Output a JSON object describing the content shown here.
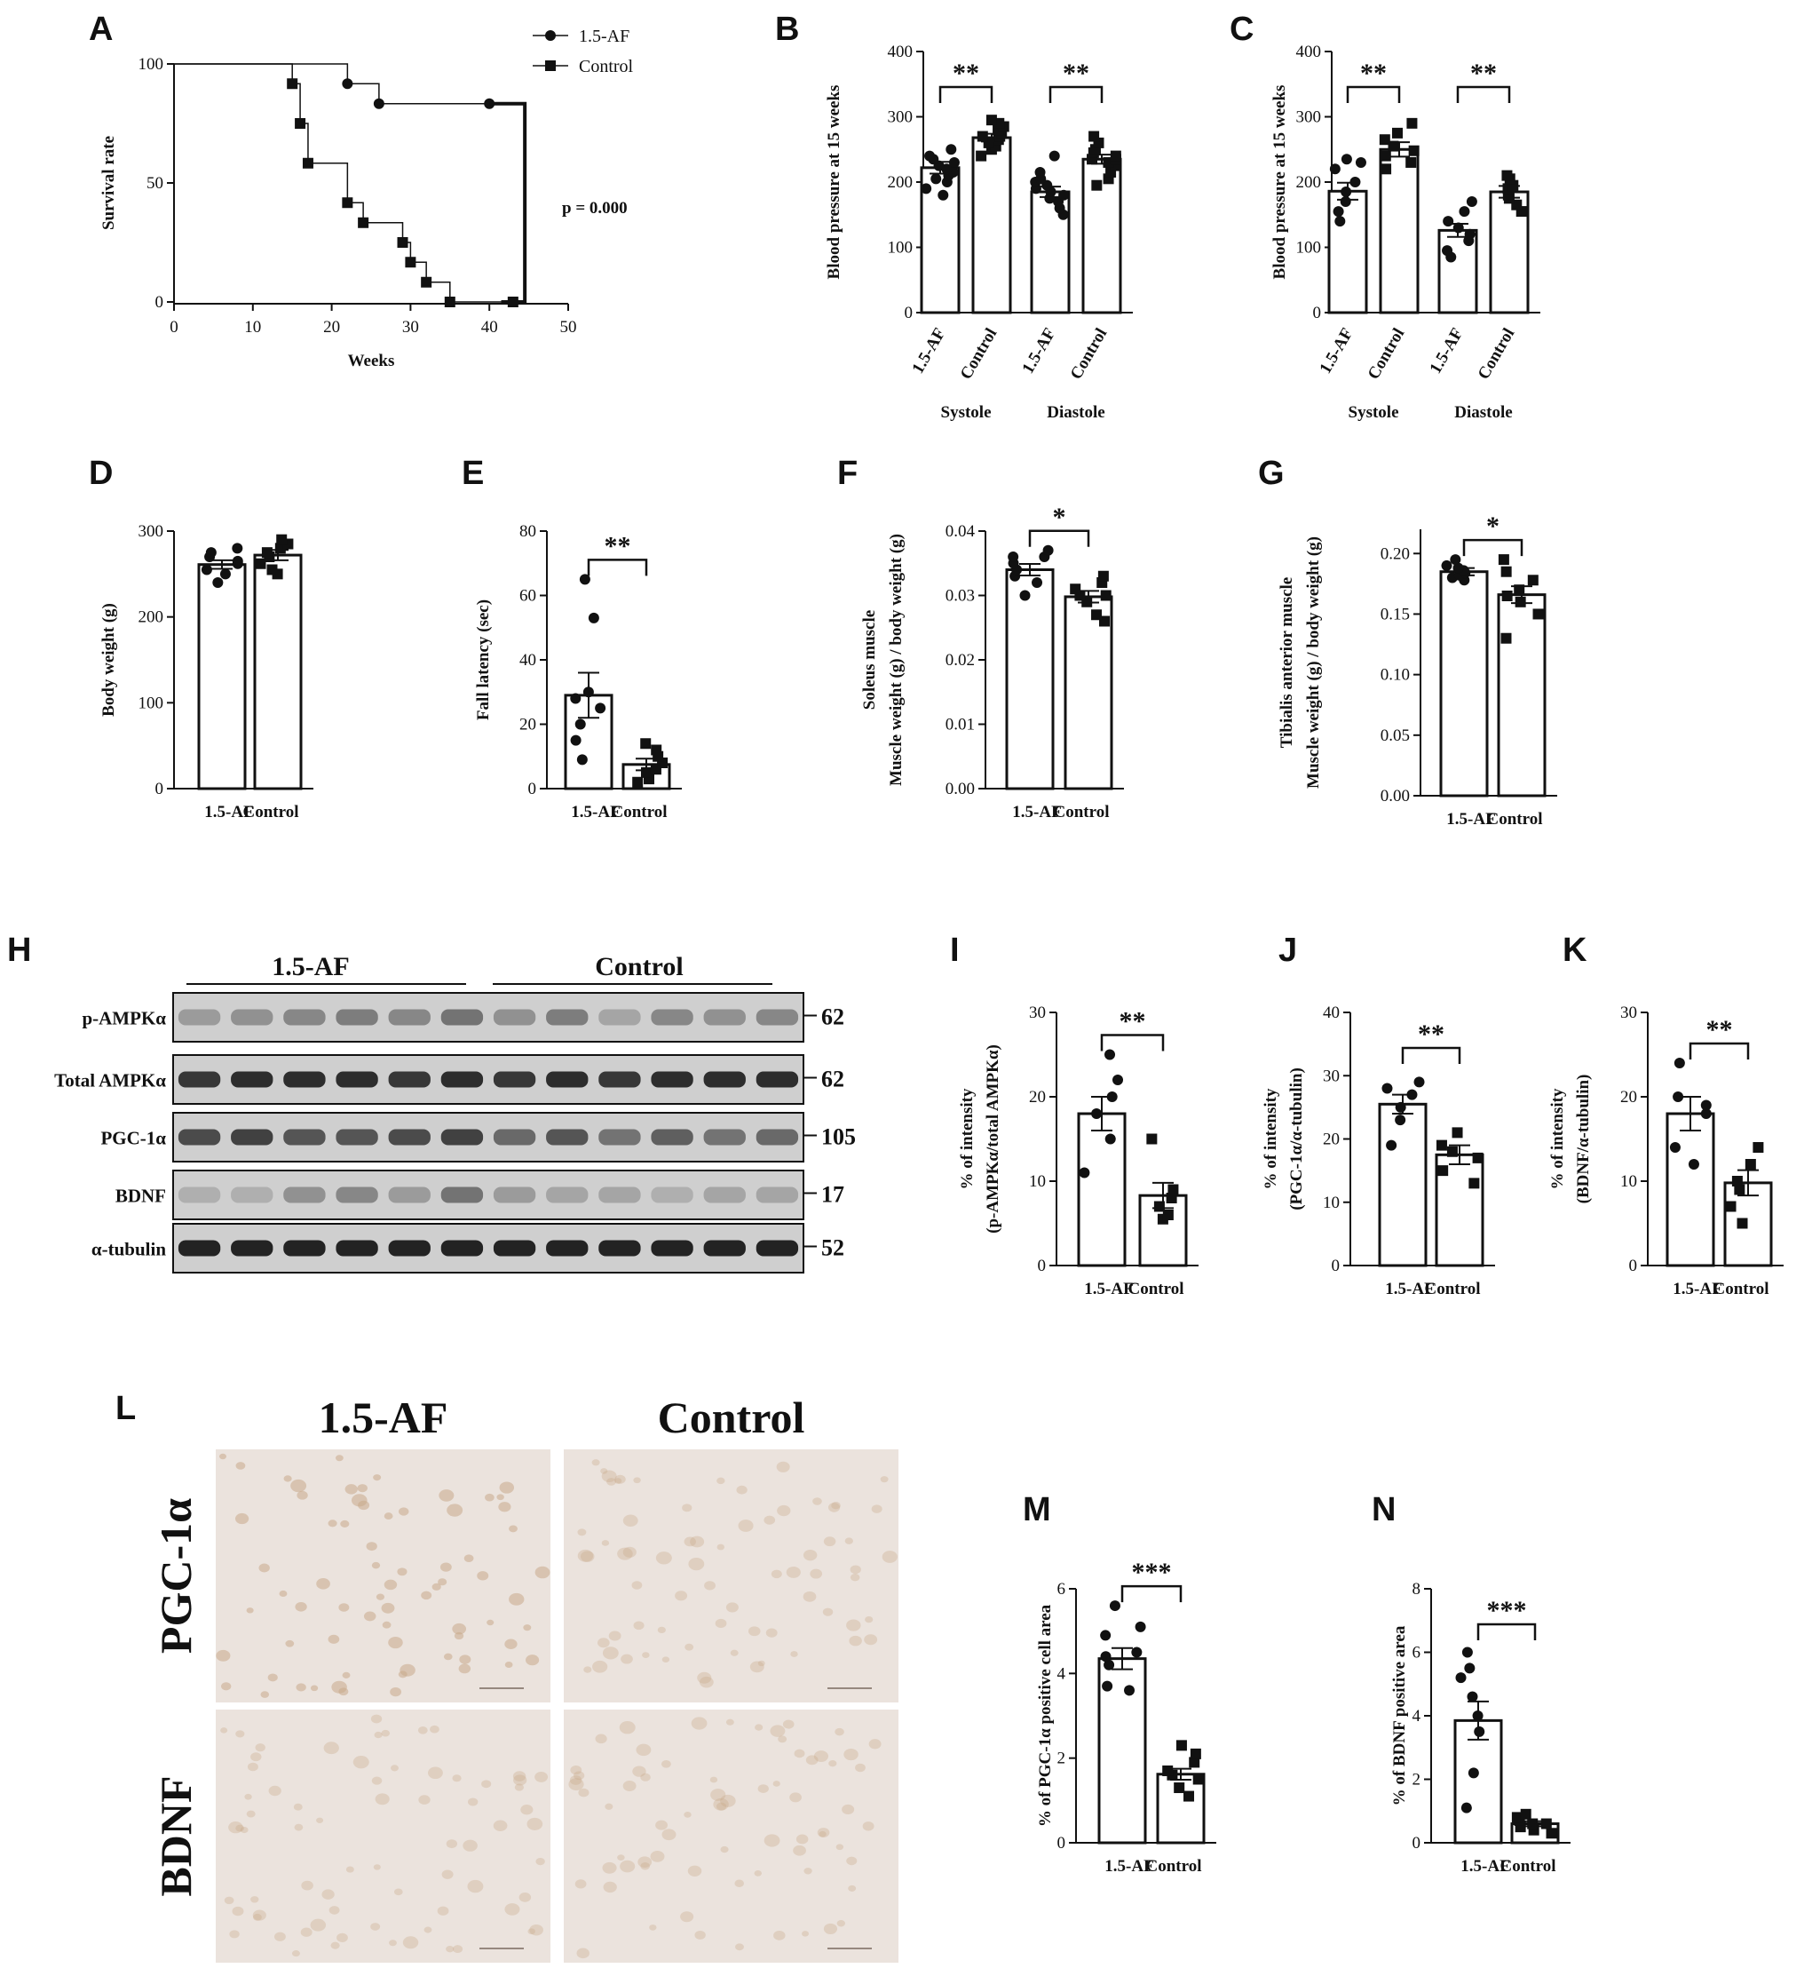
{
  "chart_data": [
    {
      "panel": "A",
      "type": "line",
      "kind": "survival",
      "xlabel": "Weeks",
      "ylabel": "Survival rate",
      "xlim": [
        0,
        50
      ],
      "ylim": [
        0,
        100
      ],
      "xticks": [
        0,
        10,
        20,
        30,
        40,
        50
      ],
      "yticks": [
        0,
        50,
        100
      ],
      "legend_position": "top-right",
      "series": [
        {
          "name": "1.5-AF",
          "marker": "circle",
          "steps": [
            [
              0,
              100
            ],
            [
              22,
              100
            ],
            [
              22,
              91.7
            ],
            [
              26,
              91.7
            ],
            [
              26,
              83.3
            ],
            [
              40,
              83.3
            ]
          ],
          "markers": [
            [
              22,
              91.7
            ],
            [
              26,
              83.3
            ],
            [
              40,
              83.3
            ]
          ]
        },
        {
          "name": "Control",
          "marker": "square",
          "steps": [
            [
              0,
              100
            ],
            [
              15,
              100
            ],
            [
              15,
              91.7
            ],
            [
              16,
              91.7
            ],
            [
              16,
              75
            ],
            [
              17,
              75
            ],
            [
              17,
              58.3
            ],
            [
              22,
              58.3
            ],
            [
              22,
              41.7
            ],
            [
              24,
              41.7
            ],
            [
              24,
              33.3
            ],
            [
              29,
              33.3
            ],
            [
              29,
              25
            ],
            [
              30,
              25
            ],
            [
              30,
              16.7
            ],
            [
              32,
              16.7
            ],
            [
              32,
              8.3
            ],
            [
              35,
              8.3
            ],
            [
              35,
              0
            ],
            [
              43,
              0
            ]
          ],
          "markers": [
            [
              15,
              91.7
            ],
            [
              16,
              75
            ],
            [
              17,
              58.3
            ],
            [
              22,
              41.7
            ],
            [
              24,
              33.3
            ],
            [
              29,
              25
            ],
            [
              30,
              16.7
            ],
            [
              32,
              8.3
            ],
            [
              35,
              0
            ],
            [
              43,
              0
            ]
          ]
        }
      ],
      "annotation": "p = 0.000"
    },
    {
      "panel": "B",
      "type": "bar",
      "ylabel": "Blood pressure at 15 weeks",
      "ylim": [
        0,
        400
      ],
      "yticks": [
        0,
        100,
        200,
        300,
        400
      ],
      "categories": [
        "1.5-AF",
        "Control",
        "1.5-AF",
        "Control"
      ],
      "groups": [
        "Systole",
        "Diastole"
      ],
      "values": [
        222,
        268,
        185,
        235
      ],
      "sem": [
        9,
        6,
        8,
        7
      ],
      "points": [
        [
          180,
          190,
          200,
          205,
          210,
          215,
          220,
          225,
          230,
          235,
          240,
          250
        ],
        [
          240,
          250,
          255,
          260,
          265,
          270,
          270,
          275,
          280,
          285,
          290,
          295
        ],
        [
          150,
          160,
          170,
          175,
          180,
          185,
          190,
          195,
          200,
          205,
          215,
          240
        ],
        [
          195,
          205,
          215,
          225,
          230,
          235,
          235,
          240,
          245,
          250,
          260,
          270
        ]
      ],
      "markers": [
        "circle",
        "square",
        "circle",
        "square"
      ],
      "significance": [
        {
          "pair": [
            0,
            1
          ],
          "label": "**"
        },
        {
          "pair": [
            2,
            3
          ],
          "label": "**"
        }
      ]
    },
    {
      "panel": "C",
      "type": "bar",
      "ylabel": "Blood pressure at 15 weeks",
      "ylim": [
        0,
        400
      ],
      "yticks": [
        0,
        100,
        200,
        300,
        400
      ],
      "categories": [
        "1.5-AF",
        "Control",
        "1.5-AF",
        "Control"
      ],
      "groups": [
        "Systole",
        "Diastole"
      ],
      "values": [
        186,
        250,
        126,
        185
      ],
      "sem": [
        13,
        11,
        10,
        9
      ],
      "points": [
        [
          140,
          155,
          170,
          185,
          200,
          220,
          230,
          235
        ],
        [
          220,
          230,
          240,
          248,
          255,
          265,
          275,
          290
        ],
        [
          85,
          95,
          110,
          120,
          130,
          140,
          155,
          170
        ],
        [
          155,
          165,
          175,
          180,
          190,
          195,
          205,
          210
        ]
      ],
      "markers": [
        "circle",
        "square",
        "circle",
        "square"
      ],
      "significance": [
        {
          "pair": [
            0,
            1
          ],
          "label": "**"
        },
        {
          "pair": [
            2,
            3
          ],
          "label": "**"
        }
      ]
    },
    {
      "panel": "D",
      "type": "bar",
      "ylabel": "Body weight (g)",
      "ylim": [
        0,
        300
      ],
      "yticks": [
        0,
        100,
        200,
        300
      ],
      "categories": [
        "1.5-AF",
        "Control"
      ],
      "values": [
        261,
        272
      ],
      "sem": [
        5,
        6
      ],
      "points": [
        [
          240,
          250,
          255,
          262,
          265,
          270,
          275,
          280
        ],
        [
          250,
          255,
          262,
          270,
          275,
          280,
          285,
          290
        ]
      ],
      "markers": [
        "circle",
        "square"
      ],
      "significance": []
    },
    {
      "panel": "E",
      "type": "bar",
      "ylabel": "Fall latency (sec)",
      "ylim": [
        0,
        80
      ],
      "yticks": [
        0,
        20,
        40,
        60,
        80
      ],
      "categories": [
        "1.5-AF",
        "Control"
      ],
      "values": [
        29,
        7.5
      ],
      "sem": [
        7,
        1.8
      ],
      "points": [
        [
          9,
          15,
          20,
          25,
          28,
          30,
          53,
          65
        ],
        [
          2,
          3,
          5,
          6,
          8,
          10,
          12,
          14
        ]
      ],
      "markers": [
        "circle",
        "square"
      ],
      "significance": [
        {
          "pair": [
            0,
            1
          ],
          "label": "**"
        }
      ]
    },
    {
      "panel": "F",
      "type": "bar",
      "ylabel": [
        "Soleus muscle",
        "Muscle weight (g) / body weight (g)"
      ],
      "ylim": [
        0,
        0.04
      ],
      "yticks": [
        0.0,
        0.01,
        0.02,
        0.03,
        0.04
      ],
      "tick_decimals": 2,
      "categories": [
        "1.5-AF",
        "Control"
      ],
      "values": [
        0.034,
        0.0298
      ],
      "sem": [
        0.0009,
        0.0009
      ],
      "points": [
        [
          0.03,
          0.032,
          0.033,
          0.034,
          0.035,
          0.036,
          0.036,
          0.037
        ],
        [
          0.026,
          0.027,
          0.029,
          0.03,
          0.03,
          0.031,
          0.032,
          0.033
        ]
      ],
      "markers": [
        "circle",
        "square"
      ],
      "significance": [
        {
          "pair": [
            0,
            1
          ],
          "label": "*"
        }
      ]
    },
    {
      "panel": "G",
      "type": "bar",
      "ylabel": [
        "Tibialis anterior muscle",
        "Muscle weight (g) / body weight (g)"
      ],
      "ylim": [
        0,
        0.22
      ],
      "yticks": [
        0.0,
        0.05,
        0.1,
        0.15,
        0.2
      ],
      "tick_decimals": 2,
      "categories": [
        "1.5-AF",
        "Control"
      ],
      "values": [
        0.185,
        0.166
      ],
      "sem": [
        0.003,
        0.007
      ],
      "points": [
        [
          0.178,
          0.18,
          0.182,
          0.184,
          0.186,
          0.188,
          0.19,
          0.195
        ],
        [
          0.13,
          0.15,
          0.16,
          0.165,
          0.17,
          0.178,
          0.185,
          0.195
        ]
      ],
      "markers": [
        "circle",
        "square"
      ],
      "significance": [
        {
          "pair": [
            0,
            1
          ],
          "label": "*"
        }
      ]
    },
    {
      "panel": "I",
      "type": "bar",
      "ylabel": [
        "% of intensity",
        "(p-AMPKα/total AMPKα)"
      ],
      "ylim": [
        0,
        30
      ],
      "yticks": [
        0,
        10,
        20,
        30
      ],
      "categories": [
        "1.5-AF",
        "Control"
      ],
      "values": [
        18,
        8.3
      ],
      "sem": [
        2,
        1.5
      ],
      "points": [
        [
          11,
          15,
          18,
          20,
          22,
          25
        ],
        [
          5.5,
          6,
          7,
          8,
          9,
          15
        ]
      ],
      "markers": [
        "circle",
        "square"
      ],
      "significance": [
        {
          "pair": [
            0,
            1
          ],
          "label": "**"
        }
      ]
    },
    {
      "panel": "J",
      "type": "bar",
      "ylabel": [
        "% of intensity",
        "(PGC-1α/α-tubulin)"
      ],
      "ylim": [
        0,
        40
      ],
      "yticks": [
        0,
        10,
        20,
        30,
        40
      ],
      "categories": [
        "1.5-AF",
        "Control"
      ],
      "values": [
        25.5,
        17.5
      ],
      "sem": [
        1.5,
        1.5
      ],
      "points": [
        [
          19,
          23,
          25,
          27,
          28,
          29
        ],
        [
          13,
          15,
          17,
          18,
          19,
          21
        ]
      ],
      "markers": [
        "circle",
        "square"
      ],
      "significance": [
        {
          "pair": [
            0,
            1
          ],
          "label": "**"
        }
      ]
    },
    {
      "panel": "K",
      "type": "bar",
      "ylabel": [
        "% of intensity",
        "(BDNF/α-tubulin)"
      ],
      "ylim": [
        0,
        30
      ],
      "yticks": [
        0,
        10,
        20,
        30
      ],
      "categories": [
        "1.5-AF",
        "Control"
      ],
      "values": [
        18,
        9.8
      ],
      "sem": [
        2,
        1.5
      ],
      "points": [
        [
          12,
          14,
          18,
          19,
          20,
          24
        ],
        [
          5,
          7,
          9,
          10,
          12,
          14
        ]
      ],
      "markers": [
        "circle",
        "square"
      ],
      "significance": [
        {
          "pair": [
            0,
            1
          ],
          "label": "**"
        }
      ]
    },
    {
      "panel": "M",
      "type": "bar",
      "ylabel": "% of PGC-1α positive cell area",
      "ylim": [
        0,
        6
      ],
      "yticks": [
        0,
        2,
        4,
        6
      ],
      "categories": [
        "1.5-AF",
        "Control"
      ],
      "values": [
        4.35,
        1.62
      ],
      "sem": [
        0.25,
        0.13
      ],
      "points": [
        [
          3.6,
          3.7,
          4.2,
          4.4,
          4.5,
          4.9,
          5.1,
          5.6
        ],
        [
          1.1,
          1.3,
          1.5,
          1.6,
          1.7,
          1.9,
          2.1,
          2.3
        ]
      ],
      "markers": [
        "circle",
        "square"
      ],
      "significance": [
        {
          "pair": [
            0,
            1
          ],
          "label": "***"
        }
      ]
    },
    {
      "panel": "N",
      "type": "bar",
      "ylabel": "% of BDNF positive area",
      "ylim": [
        0,
        8
      ],
      "yticks": [
        0,
        2,
        4,
        6,
        8
      ],
      "categories": [
        "1.5-AF",
        "Control"
      ],
      "values": [
        3.85,
        0.6
      ],
      "sem": [
        0.6,
        0.08
      ],
      "points": [
        [
          1.1,
          2.2,
          3.5,
          4.0,
          4.6,
          5.2,
          5.5,
          6.0
        ],
        [
          0.3,
          0.4,
          0.5,
          0.6,
          0.6,
          0.7,
          0.8,
          0.9
        ]
      ],
      "markers": [
        "circle",
        "square"
      ],
      "significance": [
        {
          "pair": [
            0,
            1
          ],
          "label": "***"
        }
      ]
    }
  ],
  "blot": {
    "panel": "H",
    "groups": [
      "1.5-AF",
      "Control"
    ],
    "rows": [
      {
        "label": "p-AMPKα",
        "kda": "62",
        "intensity": [
          0.35,
          0.4,
          0.45,
          0.5,
          0.45,
          0.55,
          0.4,
          0.5,
          0.3,
          0.45,
          0.4,
          0.45
        ]
      },
      {
        "label": "Total AMPKα",
        "kda": "62",
        "intensity": [
          0.85,
          0.9,
          0.9,
          0.9,
          0.85,
          0.9,
          0.85,
          0.9,
          0.85,
          0.9,
          0.9,
          0.9
        ]
      },
      {
        "label": "PGC-1α",
        "kda": "105",
        "intensity": [
          0.75,
          0.8,
          0.7,
          0.7,
          0.75,
          0.8,
          0.6,
          0.7,
          0.55,
          0.65,
          0.55,
          0.6
        ]
      },
      {
        "label": "BDNF",
        "kda": "17",
        "intensity": [
          0.25,
          0.25,
          0.4,
          0.45,
          0.35,
          0.55,
          0.35,
          0.3,
          0.3,
          0.25,
          0.3,
          0.3
        ]
      },
      {
        "label": "α-tubulin",
        "kda": "52",
        "intensity": [
          0.95,
          0.95,
          0.95,
          0.95,
          0.95,
          0.95,
          0.95,
          0.95,
          0.95,
          0.95,
          0.95,
          0.95
        ]
      }
    ]
  },
  "ihc": {
    "panel": "L",
    "columns": [
      "1.5-AF",
      "Control"
    ],
    "rows": [
      "PGC-1α",
      "BDNF"
    ]
  },
  "colors": {
    "ink": "#111111",
    "tissue": "#eee5df",
    "nucleus": "#d7bea6",
    "blot_bg": "#d3d3d3",
    "blot_band": "#1a1a1a"
  }
}
